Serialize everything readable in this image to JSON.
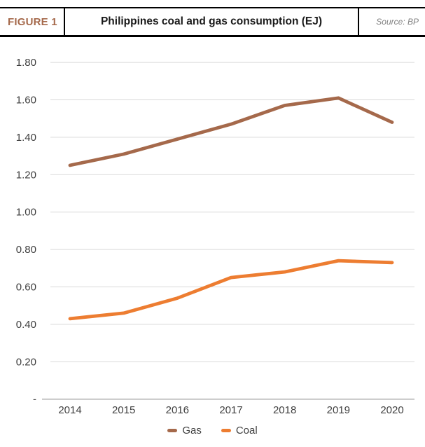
{
  "header": {
    "figure_label": "FIGURE 1",
    "title": "Philippines coal and gas consumption (EJ)",
    "source": "Source: BP"
  },
  "colors": {
    "gas": "#A5694B",
    "coal": "#ED7D31",
    "grid": "#D9D9D9",
    "axis_line": "#A6A6A6",
    "tick_text": "#3F3F3F",
    "figure_label_text": "#A5694B",
    "source_text": "#7F7F7F",
    "header_border": "#000000"
  },
  "chart_data": {
    "type": "line",
    "title": "Philippines coal and gas consumption (EJ)",
    "categories": [
      "2014",
      "2015",
      "2016",
      "2017",
      "2018",
      "2019",
      "2020"
    ],
    "series": [
      {
        "name": "Gas",
        "color_key": "gas",
        "values": [
          1.25,
          1.31,
          1.39,
          1.47,
          1.57,
          1.61,
          1.48
        ]
      },
      {
        "name": "Coal",
        "color_key": "coal",
        "values": [
          0.43,
          0.46,
          0.54,
          0.65,
          0.68,
          0.74,
          0.73
        ]
      }
    ],
    "xlabel": "",
    "ylabel": "",
    "ylim": [
      0,
      1.8
    ],
    "grid": true,
    "legend_position": "bottom",
    "y_ticks": [
      {
        "value": 1.8,
        "label": "1.80"
      },
      {
        "value": 1.6,
        "label": "1.60"
      },
      {
        "value": 1.4,
        "label": "1.40"
      },
      {
        "value": 1.2,
        "label": "1.20"
      },
      {
        "value": 1.0,
        "label": "1.00"
      },
      {
        "value": 0.8,
        "label": "0.80"
      },
      {
        "value": 0.6,
        "label": "0.60"
      },
      {
        "value": 0.4,
        "label": "0.40"
      },
      {
        "value": 0.2,
        "label": "0.20"
      },
      {
        "value": 0.0,
        "label": "-"
      }
    ]
  }
}
